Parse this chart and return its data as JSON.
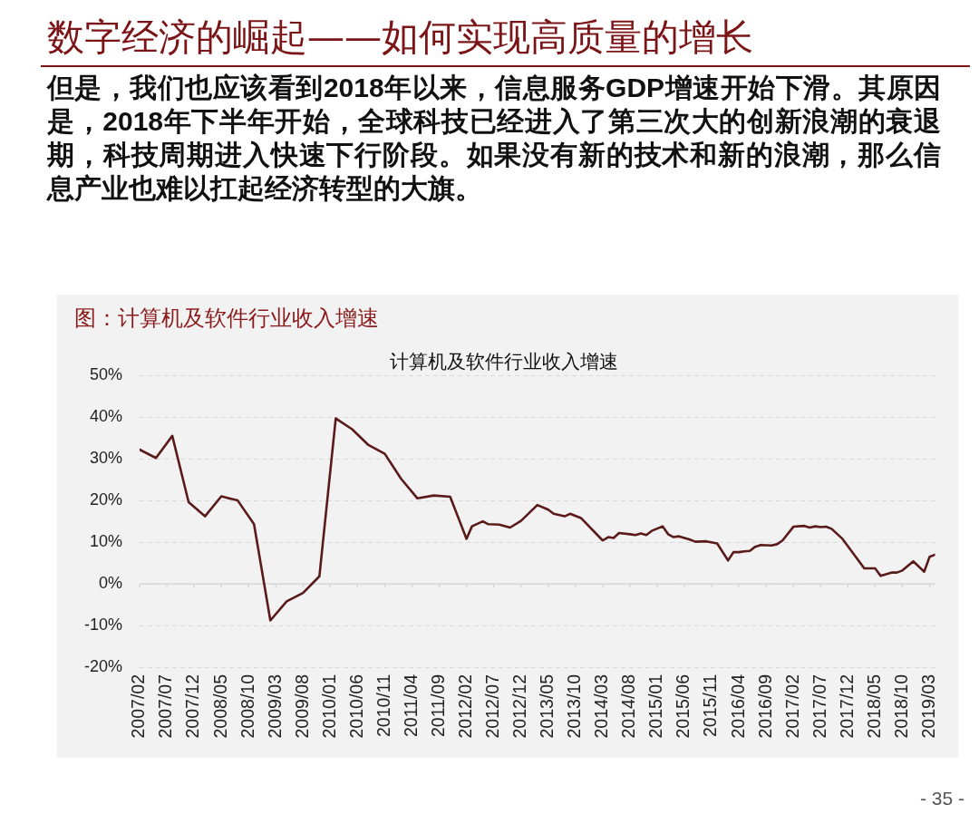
{
  "chart_data": {
    "type": "line",
    "title": "计算机及软件行业收入增速",
    "subtitle": "图：计算机及软件行业收入增速",
    "annotations": [
      "数字经济的崛起——如何实现高质量的增长",
      "但是，我们也应该看到2018年以来，信息服务GDP增速开始下滑。其原因是，2018年下半年开始，全球科技已经进入了第三次大的创新浪潮的衰退期，科技周期进入快速下行阶段。如果没有新的技术和新的浪潮，那么信息产业也难以扛起经济转型的大旗。",
      "- 35 -"
    ],
    "x": [
      "2007-02",
      "2007-05",
      "2007-08",
      "2007-11",
      "2008-02",
      "2008-05",
      "2008-08",
      "2008-11",
      "2009-02",
      "2009-05",
      "2009-08",
      "2009-11",
      "2010-02",
      "2010-05",
      "2010-08",
      "2010-11",
      "2011-02",
      "2011-05",
      "2011-08",
      "2011-11",
      "2012-02",
      "2012-03",
      "2012-05",
      "2012-06",
      "2012-08",
      "2012-10",
      "2012-12",
      "2013-03",
      "2013-05",
      "2013-06",
      "2013-08",
      "2013-09",
      "2013-11",
      "2014-03",
      "2014-04",
      "2014-05",
      "2014-06",
      "2014-08",
      "2014-09",
      "2014-10",
      "2014-11",
      "2014-12",
      "2015-02",
      "2015-03",
      "2015-04",
      "2015-05",
      "2015-07",
      "2015-08",
      "2015-10",
      "2015-12",
      "2016-02",
      "2016-03",
      "2016-04",
      "2016-05",
      "2016-06",
      "2016-07",
      "2016-08",
      "2016-10",
      "2016-11",
      "2016-12",
      "2017-02",
      "2017-04",
      "2017-05",
      "2017-06",
      "2017-07",
      "2017-08",
      "2017-09",
      "2017-11",
      "2018-03",
      "2018-05",
      "2018-06",
      "2018-08",
      "2018-09",
      "2018-10",
      "2018-12",
      "2019-02",
      "2019-03",
      "2019-04"
    ],
    "values": [
      32.2,
      30.2,
      35.5,
      19.6,
      16.2,
      21.0,
      20.0,
      14.3,
      -8.8,
      -4.2,
      -2.2,
      1.8,
      39.7,
      37.1,
      33.3,
      31.2,
      25.2,
      20.5,
      21.2,
      20.9,
      10.8,
      13.8,
      15.0,
      14.3,
      14.2,
      13.5,
      15.1,
      18.9,
      17.8,
      16.8,
      16.2,
      16.8,
      15.8,
      10.4,
      11.2,
      11.0,
      12.2,
      11.9,
      11.7,
      12.1,
      11.7,
      12.7,
      13.8,
      11.9,
      11.2,
      11.4,
      10.6,
      10.1,
      10.2,
      9.7,
      5.6,
      7.6,
      7.6,
      7.8,
      7.9,
      8.9,
      9.3,
      9.2,
      9.5,
      10.4,
      13.7,
      13.9,
      13.5,
      13.8,
      13.6,
      13.7,
      13.2,
      10.8,
      3.7,
      3.7,
      1.9,
      2.7,
      2.7,
      3.2,
      5.4,
      2.9,
      6.5,
      7.0
    ],
    "color": "#5a1a1a",
    "xlim": [
      "2007-02",
      "2019-04"
    ],
    "xticks": [
      {
        "value": "2007-02",
        "label": "2007/02"
      },
      {
        "value": "2007-07",
        "label": "2007/07"
      },
      {
        "value": "2007-12",
        "label": "2007/12"
      },
      {
        "value": "2008-05",
        "label": "2008/05"
      },
      {
        "value": "2008-10",
        "label": "2008/10"
      },
      {
        "value": "2009-03",
        "label": "2009/03"
      },
      {
        "value": "2009-08",
        "label": "2009/08"
      },
      {
        "value": "2010-01",
        "label": "2010/01"
      },
      {
        "value": "2010-06",
        "label": "2010/06"
      },
      {
        "value": "2010-11",
        "label": "2010/11"
      },
      {
        "value": "2011-04",
        "label": "2011/04"
      },
      {
        "value": "2011-09",
        "label": "2011/09"
      },
      {
        "value": "2012-02",
        "label": "2012/02"
      },
      {
        "value": "2012-07",
        "label": "2012/07"
      },
      {
        "value": "2012-12",
        "label": "2012/12"
      },
      {
        "value": "2013-05",
        "label": "2013/05"
      },
      {
        "value": "2013-10",
        "label": "2013/10"
      },
      {
        "value": "2014-03",
        "label": "2014/03"
      },
      {
        "value": "2014-08",
        "label": "2014/08"
      },
      {
        "value": "2015-01",
        "label": "2015/01"
      },
      {
        "value": "2015-06",
        "label": "2015/06"
      },
      {
        "value": "2015-11",
        "label": "2015/11"
      },
      {
        "value": "2016-04",
        "label": "2016/04"
      },
      {
        "value": "2016-09",
        "label": "2016/09"
      },
      {
        "value": "2017-02",
        "label": "2017/02"
      },
      {
        "value": "2017-07",
        "label": "2017/07"
      },
      {
        "value": "2017-12",
        "label": "2017/12"
      },
      {
        "value": "2018-05",
        "label": "2018/05"
      },
      {
        "value": "2018-10",
        "label": "2018/10"
      },
      {
        "value": "2019-03",
        "label": "2019/03"
      }
    ],
    "ylim": [
      -20,
      50
    ],
    "yticks": [
      {
        "value": -20,
        "label": "-20%"
      },
      {
        "value": -10,
        "label": "-10%"
      },
      {
        "value": 0,
        "label": "0%"
      },
      {
        "value": 10,
        "label": "10%"
      },
      {
        "value": 20,
        "label": "20%"
      },
      {
        "value": 30,
        "label": "30%"
      },
      {
        "value": 40,
        "label": "40%"
      },
      {
        "value": 50,
        "label": "50%"
      }
    ],
    "grid": "y"
  }
}
